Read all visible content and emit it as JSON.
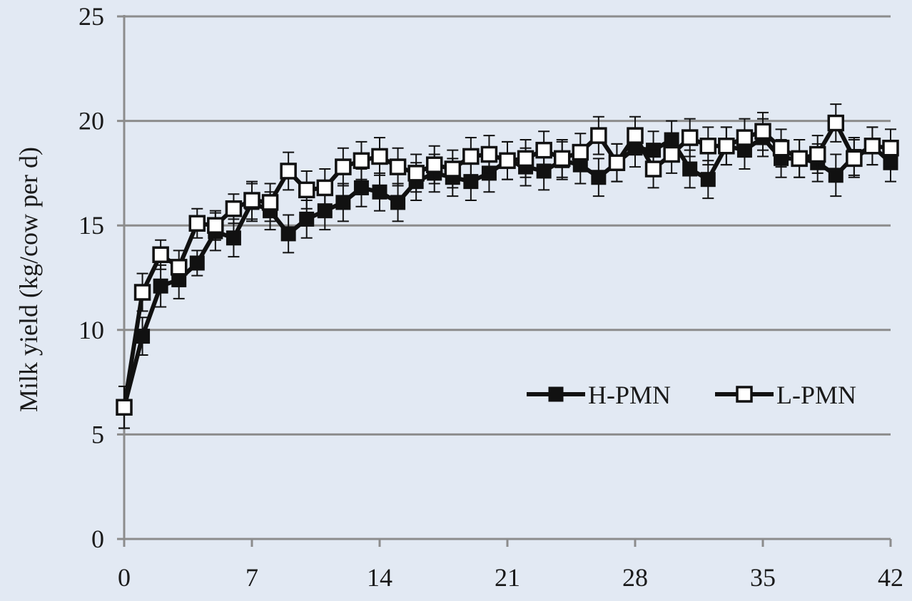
{
  "chart_data": {
    "type": "line",
    "title": "",
    "xlabel": "",
    "ylabel": "Milk yield (kg/cow per d)",
    "xlim": [
      0,
      42
    ],
    "ylim": [
      0,
      25
    ],
    "xticks": [
      0,
      7,
      14,
      21,
      28,
      35,
      42
    ],
    "yticks": [
      0,
      5,
      10,
      15,
      20,
      25
    ],
    "grid": "horizontal",
    "legend_position": "lower-right",
    "colors": {
      "background": "#e2e9f3",
      "grid": "#8c8c8c",
      "line": "#111111",
      "open_fill": "#ffffff"
    },
    "series": [
      {
        "name": "H-PMN",
        "marker": "filled-square",
        "x": [
          0,
          1,
          2,
          3,
          4,
          5,
          6,
          7,
          8,
          9,
          10,
          11,
          12,
          13,
          14,
          15,
          16,
          17,
          18,
          19,
          20,
          21,
          22,
          23,
          24,
          25,
          26,
          27,
          28,
          29,
          30,
          31,
          32,
          33,
          34,
          35,
          36,
          37,
          38,
          39,
          40,
          41,
          42
        ],
        "values": [
          6.3,
          9.7,
          12.1,
          12.4,
          13.2,
          14.7,
          14.4,
          16.1,
          15.7,
          14.6,
          15.3,
          15.7,
          16.1,
          16.8,
          16.6,
          16.1,
          17.1,
          17.5,
          17.3,
          17.1,
          17.5,
          18.1,
          17.8,
          17.6,
          18.1,
          17.9,
          17.3,
          18.0,
          18.7,
          18.6,
          19.1,
          17.7,
          17.2,
          18.8,
          18.6,
          19.2,
          18.2,
          18.2,
          18.0,
          17.4,
          18.3,
          18.8,
          18.0
        ],
        "errors": [
          1.0,
          0.9,
          1.0,
          0.9,
          0.6,
          0.9,
          0.9,
          0.9,
          0.9,
          0.9,
          0.9,
          0.9,
          0.9,
          0.9,
          0.9,
          0.9,
          0.9,
          0.9,
          0.9,
          0.9,
          0.9,
          0.9,
          0.9,
          0.9,
          0.9,
          0.9,
          0.9,
          0.9,
          0.9,
          0.9,
          0.9,
          0.9,
          0.9,
          0.9,
          0.9,
          0.9,
          0.9,
          0.9,
          0.9,
          1.0,
          0.9,
          0.9,
          0.9
        ]
      },
      {
        "name": "L-PMN",
        "marker": "open-square",
        "x": [
          0,
          1,
          2,
          3,
          4,
          5,
          6,
          7,
          8,
          9,
          10,
          11,
          12,
          13,
          14,
          15,
          16,
          17,
          18,
          19,
          20,
          21,
          22,
          23,
          24,
          25,
          26,
          27,
          28,
          29,
          30,
          31,
          32,
          33,
          34,
          35,
          36,
          37,
          38,
          39,
          40,
          41,
          42
        ],
        "values": [
          6.3,
          11.8,
          13.6,
          13.0,
          15.1,
          15.0,
          15.8,
          16.2,
          16.1,
          17.6,
          16.7,
          16.8,
          17.8,
          18.1,
          18.3,
          17.8,
          17.5,
          17.9,
          17.7,
          18.3,
          18.4,
          18.1,
          18.2,
          18.6,
          18.2,
          18.5,
          19.3,
          18.0,
          19.3,
          17.7,
          18.4,
          19.2,
          18.8,
          18.8,
          19.2,
          19.5,
          18.7,
          18.2,
          18.4,
          19.9,
          18.2,
          18.8,
          18.7
        ],
        "errors": [
          1.0,
          0.9,
          0.7,
          0.8,
          0.7,
          0.7,
          0.7,
          0.9,
          0.9,
          0.9,
          0.9,
          0.9,
          0.9,
          0.9,
          0.9,
          0.9,
          0.9,
          0.9,
          0.9,
          0.9,
          0.9,
          0.9,
          0.9,
          0.9,
          0.9,
          0.9,
          0.9,
          0.9,
          0.9,
          0.9,
          0.9,
          0.9,
          0.9,
          0.9,
          0.9,
          0.9,
          0.9,
          0.9,
          0.9,
          0.9,
          0.9,
          0.9,
          0.9
        ]
      }
    ]
  }
}
